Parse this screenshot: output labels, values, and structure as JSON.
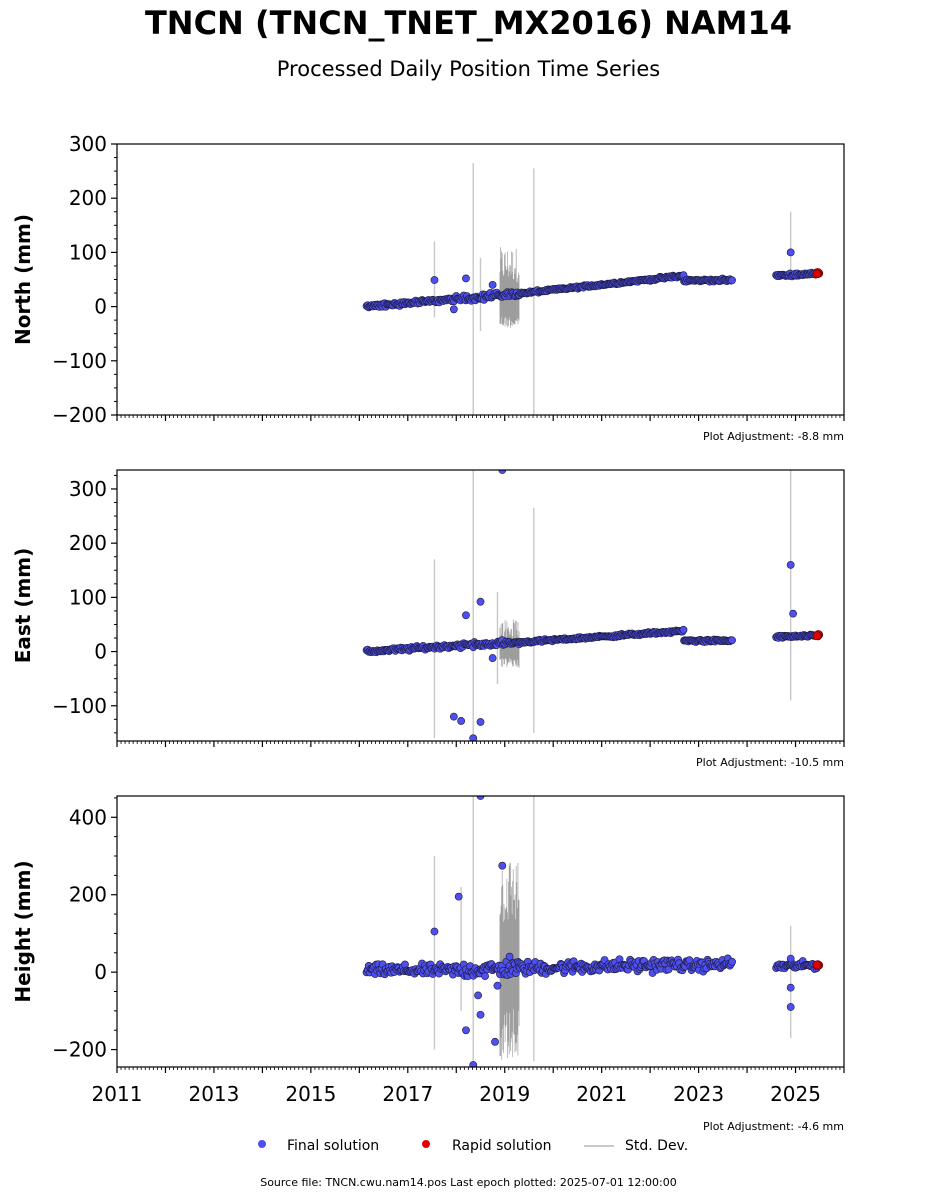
{
  "title": "TNCN (TNCN_TNET_MX2016) NAM14",
  "subtitle": "Processed Daily Position Time Series",
  "legend": {
    "final": "Final solution",
    "rapid": "Rapid solution",
    "std": "Std. Dev."
  },
  "source_text": "Source file: TNCN.cwu.nam14.pos  Last epoch plotted: 2025-07-01 12:00:00",
  "colors": {
    "final_fill": "#4f4ff0",
    "final_edge": "#1a1a3a",
    "rapid_fill": "#e00000",
    "std": "#c8c8c8"
  },
  "chart_data": [
    {
      "type": "scatter",
      "ylabel": "North (mm)",
      "xlim": [
        2011,
        2026
      ],
      "ylim": [
        -200,
        300
      ],
      "yticks": [
        -200,
        -100,
        0,
        100,
        200,
        300
      ],
      "ytick_labels": [
        "−200",
        "−100",
        "0",
        "100",
        "200",
        "300"
      ],
      "adjustment": "Plot Adjustment: -8.8 mm",
      "segments": [
        {
          "x0": 2016.15,
          "x1": 2018.0,
          "y0": 0,
          "y1": 14,
          "noise": 3
        },
        {
          "x0": 2018.0,
          "x1": 2019.3,
          "y0": 14,
          "y1": 24,
          "noise": 5
        },
        {
          "x0": 2019.3,
          "x1": 2022.7,
          "y0": 24,
          "y1": 57,
          "noise": 2
        },
        {
          "x0": 2022.7,
          "x1": 2023.7,
          "y0": 48,
          "y1": 49,
          "noise": 2
        },
        {
          "x0": 2024.6,
          "x1": 2025.45,
          "y0": 57,
          "y1": 61,
          "noise": 2
        }
      ],
      "outliers": [
        [
          2017.55,
          49
        ],
        [
          2017.95,
          -5
        ],
        [
          2018.2,
          52
        ],
        [
          2018.75,
          40
        ],
        [
          2024.9,
          100
        ]
      ],
      "rapid": [
        [
          2025.48,
          62
        ]
      ],
      "std_bars": [
        [
          2017.55,
          -20,
          120
        ],
        [
          2018.35,
          -250,
          265
        ],
        [
          2019.6,
          -200,
          255
        ],
        [
          2024.9,
          60,
          175
        ],
        [
          2018.5,
          -45,
          90
        ]
      ],
      "dense_std": [
        2018.9,
        2019.3,
        -40,
        110
      ]
    },
    {
      "type": "scatter",
      "ylabel": "East (mm)",
      "xlim": [
        2011,
        2026
      ],
      "ylim": [
        -165,
        335
      ],
      "yticks": [
        -100,
        0,
        100,
        200,
        300
      ],
      "ytick_labels": [
        "−100",
        "0",
        "100",
        "200",
        "300"
      ],
      "adjustment": "Plot Adjustment: -10.5 mm",
      "segments": [
        {
          "x0": 2016.15,
          "x1": 2018.0,
          "y0": 0,
          "y1": 11,
          "noise": 3
        },
        {
          "x0": 2018.0,
          "x1": 2019.3,
          "y0": 11,
          "y1": 17,
          "noise": 4
        },
        {
          "x0": 2019.3,
          "x1": 2022.7,
          "y0": 17,
          "y1": 38,
          "noise": 2
        },
        {
          "x0": 2022.7,
          "x1": 2023.7,
          "y0": 20,
          "y1": 20,
          "noise": 2
        },
        {
          "x0": 2024.6,
          "x1": 2025.45,
          "y0": 27,
          "y1": 29,
          "noise": 2
        }
      ],
      "outliers": [
        [
          2017.95,
          -120
        ],
        [
          2018.1,
          -128
        ],
        [
          2018.2,
          67
        ],
        [
          2018.35,
          -160
        ],
        [
          2018.5,
          92
        ],
        [
          2018.5,
          -130
        ],
        [
          2018.75,
          -12
        ],
        [
          2018.95,
          335
        ],
        [
          2024.9,
          160
        ],
        [
          2024.95,
          70
        ]
      ],
      "rapid": [
        [
          2025.48,
          30
        ]
      ],
      "std_bars": [
        [
          2017.55,
          -160,
          170
        ],
        [
          2018.35,
          -330,
          335
        ],
        [
          2019.6,
          -150,
          265
        ],
        [
          2024.9,
          -90,
          335
        ],
        [
          2018.85,
          -60,
          110
        ]
      ],
      "dense_std": [
        2018.9,
        2019.3,
        -30,
        60
      ]
    },
    {
      "type": "scatter",
      "ylabel": "Height (mm)",
      "xlim": [
        2011,
        2026
      ],
      "ylim": [
        -245,
        455
      ],
      "yticks": [
        -200,
        0,
        200,
        400
      ],
      "ytick_labels": [
        "−200",
        "0",
        "200",
        "400"
      ],
      "xticks": [
        2011,
        2013,
        2015,
        2017,
        2019,
        2021,
        2023,
        2025
      ],
      "adjustment": "Plot Adjustment: -4.6 mm",
      "segments": [
        {
          "x0": 2016.15,
          "x1": 2018.0,
          "y0": 5,
          "y1": 5,
          "noise": 12
        },
        {
          "x0": 2018.0,
          "x1": 2019.3,
          "y0": 5,
          "y1": 10,
          "noise": 18
        },
        {
          "x0": 2019.3,
          "x1": 2022.7,
          "y0": 10,
          "y1": 20,
          "noise": 14
        },
        {
          "x0": 2022.7,
          "x1": 2023.7,
          "y0": 15,
          "y1": 22,
          "noise": 12
        },
        {
          "x0": 2024.6,
          "x1": 2025.45,
          "y0": 15,
          "y1": 18,
          "noise": 8
        }
      ],
      "outliers": [
        [
          2017.55,
          105
        ],
        [
          2018.05,
          195
        ],
        [
          2018.2,
          -150
        ],
        [
          2018.35,
          -240
        ],
        [
          2018.45,
          -60
        ],
        [
          2018.5,
          -110
        ],
        [
          2018.5,
          455
        ],
        [
          2018.8,
          -180
        ],
        [
          2018.85,
          -35
        ],
        [
          2018.95,
          275
        ],
        [
          2019.1,
          40
        ],
        [
          2024.9,
          -40
        ],
        [
          2024.9,
          -90
        ],
        [
          2024.9,
          35
        ]
      ],
      "rapid": [
        [
          2025.48,
          18
        ]
      ],
      "std_bars": [
        [
          2017.55,
          -200,
          300
        ],
        [
          2018.35,
          -245,
          455
        ],
        [
          2019.6,
          -230,
          455
        ],
        [
          2024.9,
          -170,
          120
        ],
        [
          2018.1,
          -100,
          220
        ]
      ],
      "dense_std": [
        2018.9,
        2019.3,
        -230,
        300
      ]
    }
  ]
}
